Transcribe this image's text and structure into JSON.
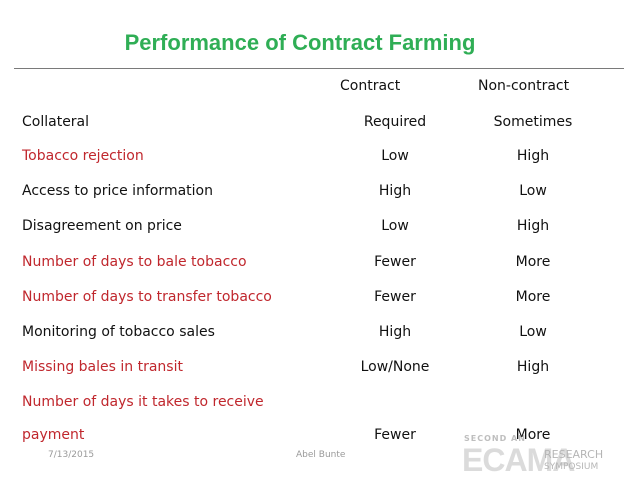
{
  "slide": {
    "title": "Performance of Contract Farming",
    "columns": [
      "Contract",
      "Non-contract"
    ],
    "rows": [
      {
        "label": "Collateral",
        "contract": "Required",
        "noncontract": "Sometimes"
      },
      {
        "label": "Tobacco rejection",
        "contract": "Low",
        "noncontract": "High"
      },
      {
        "label": "Access to price information",
        "contract": "High",
        "noncontract": "Low"
      },
      {
        "label": "Disagreement on price",
        "contract": "Low",
        "noncontract": "High"
      },
      {
        "label": "Number of days to bale tobacco",
        "contract": "Fewer",
        "noncontract": "More"
      },
      {
        "label": "Number of days to transfer tobacco",
        "contract": "Fewer",
        "noncontract": "More"
      },
      {
        "label": "Monitoring of tobacco sales",
        "contract": "High",
        "noncontract": "Low"
      },
      {
        "label": "Missing bales in transit",
        "contract": "Low/None",
        "noncontract": "High"
      },
      {
        "label": "Number of days it takes to receive",
        "contract": "",
        "noncontract": ""
      },
      {
        "label": "payment",
        "contract": "Fewer",
        "noncontract": "More"
      }
    ],
    "footer": {
      "date": "7/13/2015",
      "author": "Abel Bunte"
    },
    "logo": {
      "line1": "SECOND AN",
      "brand": "ECAMA",
      "line2": "RESEARCH",
      "line3": "SYMPOSIUM"
    },
    "colors": {
      "title": "#2fae55",
      "highlight_text": "#c0272d",
      "text": "#111111"
    }
  }
}
